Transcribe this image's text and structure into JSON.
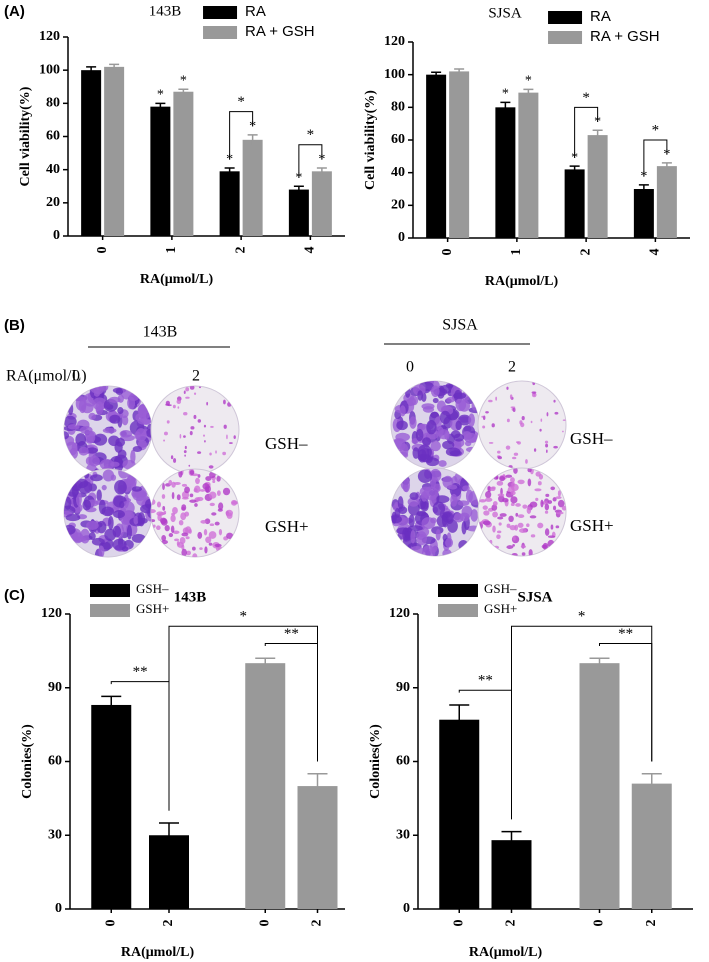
{
  "panel_labels": [
    "(A)",
    "(B)",
    "(C)"
  ],
  "chart_data": [
    {
      "type": "bar",
      "title": "143B",
      "xlabel": "RA(μmol/L)",
      "ylabel": "Cell viability(%)",
      "categories": [
        "0",
        "1",
        "2",
        "4"
      ],
      "series": [
        {
          "name": "RA",
          "color": "#000000",
          "values": [
            100,
            78,
            39,
            28
          ],
          "errors": [
            2,
            2,
            2,
            2
          ],
          "significance": [
            null,
            "*",
            "*",
            "*"
          ]
        },
        {
          "name": "RA + GSH",
          "color": "#999999",
          "values": [
            102,
            87,
            58,
            39
          ],
          "errors": [
            1.5,
            1.5,
            3,
            2
          ],
          "significance": [
            null,
            "*",
            "*",
            "*"
          ]
        }
      ],
      "brackets": [
        {
          "category": 2,
          "label": "*"
        },
        {
          "category": 3,
          "label": "*"
        }
      ],
      "ylim": [
        0,
        120
      ],
      "yticks": [
        0,
        20,
        40,
        60,
        80,
        100,
        120
      ],
      "legend": "upper right"
    },
    {
      "type": "bar",
      "title": "SJSA",
      "xlabel": "RA(μmol/L)",
      "ylabel": "Cell viability(%)",
      "categories": [
        "0",
        "1",
        "2",
        "4"
      ],
      "series": [
        {
          "name": "RA",
          "color": "#000000",
          "values": [
            100,
            80,
            42,
            30
          ],
          "errors": [
            1.5,
            3,
            2,
            2.5
          ],
          "significance": [
            null,
            "*",
            "*",
            "*"
          ]
        },
        {
          "name": "RA + GSH",
          "color": "#999999",
          "values": [
            102,
            89,
            63,
            44
          ],
          "errors": [
            1.5,
            2,
            3,
            2
          ],
          "significance": [
            null,
            "*",
            "*",
            "*"
          ]
        }
      ],
      "brackets": [
        {
          "category": 2,
          "label": "*"
        },
        {
          "category": 3,
          "label": "*"
        }
      ],
      "ylim": [
        0,
        120
      ],
      "yticks": [
        0,
        20,
        40,
        60,
        80,
        100,
        120
      ],
      "legend": "upper right"
    },
    {
      "type": "column",
      "title": "143B",
      "xlabel": "RA(μmol/L)",
      "ylabel": "Colonies(%)",
      "categories": [
        "0",
        "2",
        "0",
        "2"
      ],
      "series": [
        {
          "name": "GSH–",
          "color": "#000000",
          "values": [
            83,
            30,
            null,
            null
          ],
          "errors": [
            3.5,
            5,
            null,
            null
          ]
        },
        {
          "name": "GSH+",
          "color": "#999999",
          "values": [
            null,
            null,
            100,
            50
          ],
          "errors": [
            null,
            null,
            2,
            5
          ]
        }
      ],
      "brackets": [
        {
          "from": 0,
          "to": 1,
          "label": "**"
        },
        {
          "from": 2,
          "to": 3,
          "label": "**"
        },
        {
          "from": 1,
          "to": 3,
          "label": "*"
        }
      ],
      "ylim": [
        0,
        120
      ],
      "yticks": [
        0,
        30,
        60,
        90,
        120
      ],
      "legend": "upper left"
    },
    {
      "type": "column",
      "title": "SJSA",
      "xlabel": "RA(μmol/L)",
      "ylabel": "Colonies(%)",
      "categories": [
        "0",
        "2",
        "0",
        "2"
      ],
      "series": [
        {
          "name": "GSH–",
          "color": "#000000",
          "values": [
            77,
            28,
            null,
            null
          ],
          "errors": [
            6,
            3.5,
            null,
            null
          ]
        },
        {
          "name": "GSH+",
          "color": "#999999",
          "values": [
            null,
            null,
            100,
            51
          ],
          "errors": [
            null,
            null,
            2,
            4
          ]
        }
      ],
      "brackets": [
        {
          "from": 0,
          "to": 1,
          "label": "**"
        },
        {
          "from": 2,
          "to": 3,
          "label": "**"
        },
        {
          "from": 1,
          "to": 3,
          "label": "*"
        }
      ],
      "ylim": [
        0,
        120
      ],
      "yticks": [
        0,
        30,
        60,
        90,
        120
      ],
      "legend": "upper left"
    }
  ],
  "colony_images": [
    {
      "title": "143B",
      "dose_label": "RA(μmol/L)",
      "doses": [
        "0",
        "2"
      ],
      "rows": [
        "GSH–",
        "GSH+"
      ]
    },
    {
      "title": "SJSA",
      "doses": [
        "0",
        "2"
      ],
      "rows": [
        "GSH–",
        "GSH+"
      ]
    }
  ]
}
